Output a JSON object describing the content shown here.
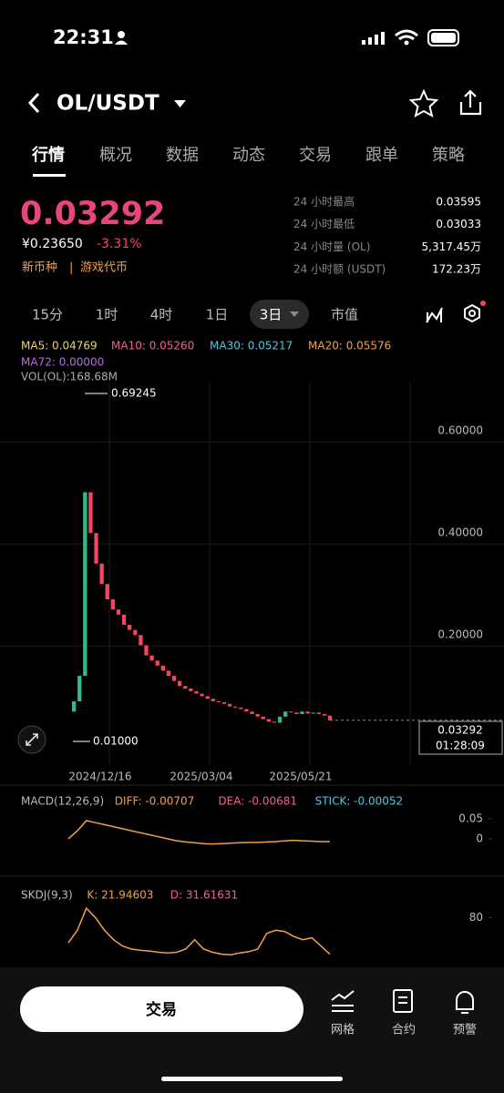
{
  "status_bar": {
    "time": "22:31"
  },
  "header": {
    "pair": "OL/USDT"
  },
  "tabs": [
    "行情",
    "概况",
    "数据",
    "动态",
    "交易",
    "跟单",
    "策略"
  ],
  "ticker": {
    "price": "0.03292",
    "cny": "¥0.23650",
    "change": "-3.31%",
    "tags": [
      "新币种",
      "游戏代币"
    ],
    "stats": [
      {
        "label": "24 小时最高",
        "value": "0.03595"
      },
      {
        "label": "24 小时最低",
        "value": "0.03033"
      },
      {
        "label": "24 小时量 (OL)",
        "value": "5,317.45万"
      },
      {
        "label": "24 小时额 (USDT)",
        "value": "172.23万"
      }
    ]
  },
  "intervals": [
    "15分",
    "1时",
    "4时",
    "1日",
    "3日",
    "市值"
  ],
  "chart_data": [
    {
      "type": "candlestick",
      "legend": [
        {
          "text": "MA5: 0.04769",
          "color": "#e9d36f"
        },
        {
          "text": "MA10: 0.05260",
          "color": "#f0609a"
        },
        {
          "text": "MA30: 0.05217",
          "color": "#4fc9e0"
        },
        {
          "text": "MA20: 0.05576",
          "color": "#f0a04b"
        },
        {
          "text": "MA72: 0.00000",
          "color": "#b36fe0"
        }
      ],
      "volume_label": "VOL(OL):168.68M",
      "max_label": "0.69245",
      "min_label": "0.01000",
      "last_price": "0.03292",
      "countdown": "01:28:09",
      "x_labels": [
        "2024/12/16",
        "2025/03/04",
        "2025/05/21"
      ],
      "ylim": [
        -0.055,
        0.695
      ],
      "yticks": [
        {
          "value": 0.6,
          "label": "0.60000"
        },
        {
          "value": 0.4,
          "label": "0.40000"
        },
        {
          "value": 0.2,
          "label": "0.20000"
        }
      ],
      "up_color": "#2ebd85",
      "down_color": "#f6465d",
      "values": [
        0.05,
        0.07,
        0.12,
        0.48,
        0.4,
        0.34,
        0.3,
        0.27,
        0.25,
        0.24,
        0.22,
        0.21,
        0.2,
        0.18,
        0.16,
        0.15,
        0.14,
        0.13,
        0.12,
        0.11,
        0.1,
        0.095,
        0.09,
        0.085,
        0.08,
        0.075,
        0.07,
        0.068,
        0.065,
        0.06,
        0.058,
        0.055,
        0.05,
        0.045,
        0.04,
        0.035,
        0.03,
        0.028,
        0.04,
        0.05,
        0.048,
        0.045,
        0.05,
        0.046,
        0.048,
        0.045,
        0.042,
        0.033
      ]
    },
    {
      "type": "line",
      "title": "MACD(12,26,9)",
      "legend": [
        {
          "text": "DIFF: -0.00707",
          "color": "#f0a04b"
        },
        {
          "text": "DEA: -0.00681",
          "color": "#f0609a"
        },
        {
          "text": "STICK: -0.00052",
          "color": "#4fc9e0"
        }
      ],
      "ylim": [
        -0.066,
        0.07
      ],
      "yticks": [
        0.05,
        0
      ],
      "color": "#f0a04b",
      "values": [
        0,
        0.02,
        0.045,
        0.04,
        0.035,
        0.03,
        0.025,
        0.02,
        0.015,
        0.01,
        0.005,
        0,
        -0.005,
        -0.008,
        -0.01,
        -0.012,
        -0.013,
        -0.012,
        -0.011,
        -0.01,
        -0.009,
        -0.009,
        -0.008,
        -0.007,
        -0.005,
        -0.004,
        -0.005,
        -0.006,
        -0.007,
        -0.007
      ]
    },
    {
      "type": "line",
      "title": "SKDJ(9,3)",
      "legend": [
        {
          "text": "K: 21.94603",
          "color": "#f0a04b"
        },
        {
          "text": "D: 31.61631",
          "color": "#f0609a"
        }
      ],
      "ylim": [
        4,
        101
      ],
      "yticks": [
        80
      ],
      "color": "#f0a04b",
      "values": [
        40,
        60,
        95,
        80,
        60,
        45,
        35,
        30,
        28,
        27,
        25,
        24,
        25,
        30,
        45,
        30,
        25,
        22,
        21,
        24,
        26,
        30,
        55,
        60,
        58,
        50,
        45,
        48,
        35,
        22
      ]
    }
  ],
  "bottom_bar": {
    "trade_button": "交易",
    "actions": [
      "网格",
      "合约",
      "预警"
    ]
  }
}
